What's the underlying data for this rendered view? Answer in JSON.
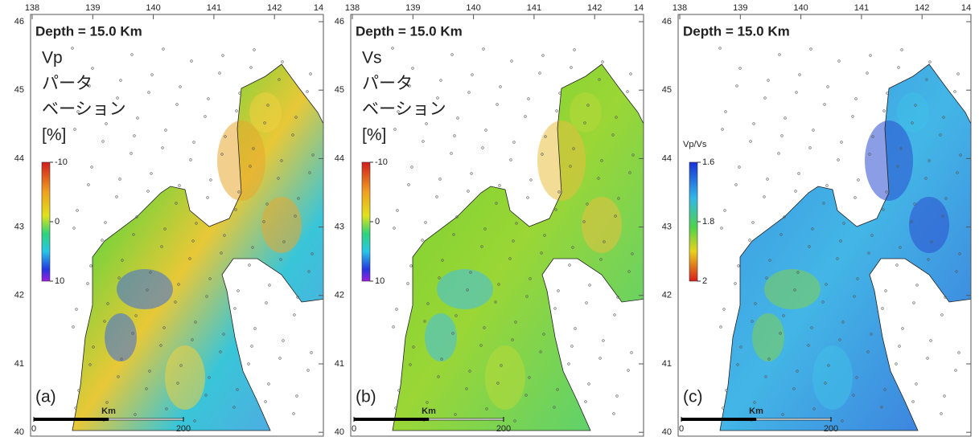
{
  "panels": [
    {
      "label": "(a)",
      "depth_title": "Depth = 15.0 Km",
      "quantity": [
        "Vp",
        "パータ",
        "ベーション",
        "[%]"
      ],
      "colorbar": {
        "lim": [
          -10,
          10
        ],
        "ticks": [
          -10,
          0,
          10
        ]
      }
    },
    {
      "label": "(b)",
      "depth_title": "Depth = 15.0 Km",
      "quantity": [
        "Vs",
        "パータ",
        "ベーション",
        "[%]"
      ],
      "colorbar": {
        "lim": [
          -10,
          10
        ],
        "ticks": [
          -10,
          0,
          10
        ]
      }
    },
    {
      "label": "(c)",
      "depth_title": "Depth = 15.0 Km",
      "quantity": [
        "Vp/Vs"
      ],
      "colorbar": {
        "lim": [
          1.6,
          2
        ],
        "ticks": [
          1.6,
          1.8,
          2
        ]
      }
    }
  ],
  "lon_ticks": [
    138,
    139,
    140,
    141,
    142,
    {
      "value": 143,
      "label": "14"
    }
  ],
  "lat_ticks": [
    46,
    45,
    44,
    43,
    42,
    41,
    40
  ],
  "scale_bar": {
    "unit": "Km",
    "ticks": [
      0,
      200
    ]
  }
}
